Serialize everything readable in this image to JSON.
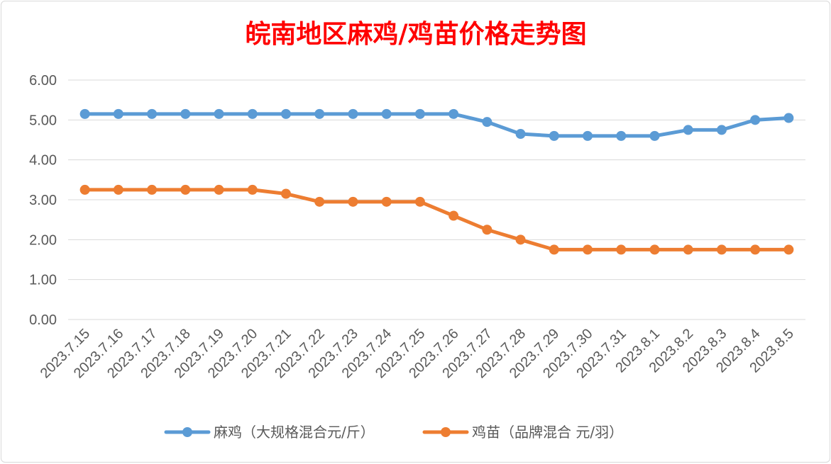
{
  "chart_data": {
    "type": "line",
    "title": "皖南地区麻鸡/鸡苗价格走势图",
    "title_color": "#ff0000",
    "categories": [
      "2023.7.15",
      "2023.7.16",
      "2023.7.17",
      "2023.7.18",
      "2023.7.19",
      "2023.7.20",
      "2023.7.21",
      "2023.7.22",
      "2023.7.23",
      "2023.7.24",
      "2023.7.25",
      "2023.7.26",
      "2023.7.27",
      "2023.7.28",
      "2023.7.29",
      "2023.7.30",
      "2023.7.31",
      "2023.8.1",
      "2023.8.2",
      "2023.8.3",
      "2023.8.4",
      "2023.8.5"
    ],
    "series": [
      {
        "name": "麻鸡（大规格混合元/斤）",
        "color": "#5b9bd5",
        "values": [
          5.15,
          5.15,
          5.15,
          5.15,
          5.15,
          5.15,
          5.15,
          5.15,
          5.15,
          5.15,
          5.15,
          5.15,
          4.95,
          4.65,
          4.6,
          4.6,
          4.6,
          4.6,
          4.75,
          4.75,
          5.0,
          5.05
        ]
      },
      {
        "name": "鸡苗（品牌混合 元/羽）",
        "color": "#ed7d31",
        "values": [
          3.25,
          3.25,
          3.25,
          3.25,
          3.25,
          3.25,
          3.15,
          2.95,
          2.95,
          2.95,
          2.95,
          2.6,
          2.25,
          2.0,
          1.75,
          1.75,
          1.75,
          1.75,
          1.75,
          1.75,
          1.75,
          1.75
        ]
      }
    ],
    "y_ticks": [
      "0.00",
      "1.00",
      "2.00",
      "3.00",
      "4.00",
      "5.00",
      "6.00"
    ],
    "ylim": [
      0,
      6
    ],
    "grid": true,
    "legend_position": "bottom"
  }
}
